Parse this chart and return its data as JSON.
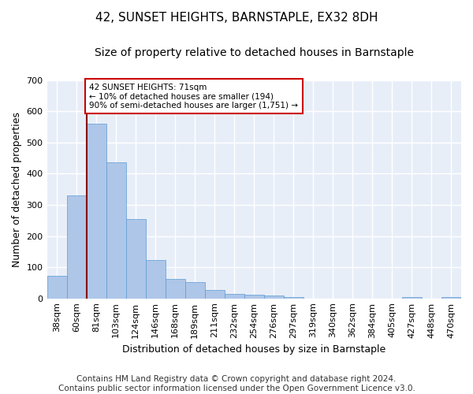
{
  "title": "42, SUNSET HEIGHTS, BARNSTAPLE, EX32 8DH",
  "subtitle": "Size of property relative to detached houses in Barnstaple",
  "xlabel": "Distribution of detached houses by size in Barnstaple",
  "ylabel": "Number of detached properties",
  "categories": [
    "38sqm",
    "60sqm",
    "81sqm",
    "103sqm",
    "124sqm",
    "146sqm",
    "168sqm",
    "189sqm",
    "211sqm",
    "232sqm",
    "254sqm",
    "276sqm",
    "297sqm",
    "319sqm",
    "340sqm",
    "362sqm",
    "384sqm",
    "405sqm",
    "427sqm",
    "448sqm",
    "470sqm"
  ],
  "values": [
    72,
    330,
    560,
    435,
    255,
    122,
    62,
    52,
    28,
    15,
    12,
    10,
    4,
    0,
    0,
    0,
    0,
    0,
    4,
    0,
    4
  ],
  "bar_color": "#aec6e8",
  "bar_edge_color": "#5b9bd5",
  "vline_x": 1.5,
  "vline_color": "#8b0000",
  "ylim": [
    0,
    700
  ],
  "yticks": [
    0,
    100,
    200,
    300,
    400,
    500,
    600,
    700
  ],
  "annotation_text": "42 SUNSET HEIGHTS: 71sqm\n← 10% of detached houses are smaller (194)\n90% of semi-detached houses are larger (1,751) →",
  "annotation_box_color": "#ffffff",
  "annotation_box_edge": "#cc0000",
  "footer": "Contains HM Land Registry data © Crown copyright and database right 2024.\nContains public sector information licensed under the Open Government Licence v3.0.",
  "fig_background": "#ffffff",
  "plot_background": "#e8eef8",
  "grid_color": "#ffffff",
  "title_fontsize": 11,
  "subtitle_fontsize": 10,
  "xlabel_fontsize": 9,
  "ylabel_fontsize": 9,
  "tick_fontsize": 8,
  "footer_fontsize": 7.5
}
